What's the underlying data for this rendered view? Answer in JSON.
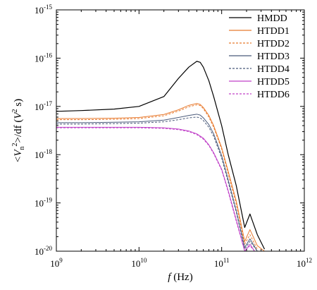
{
  "chart_data": {
    "type": "line",
    "xscale": "log",
    "yscale": "log",
    "xlim": [
      1000000000.0,
      1000000000000.0
    ],
    "ylim": [
      1e-20,
      1e-15
    ],
    "xlabel": "f (Hz)",
    "ylabel": "<V_n^2>/df (V^2 s)",
    "x_tick_labels": [
      {
        "base": "10",
        "exp": "9"
      },
      {
        "base": "10",
        "exp": "10"
      },
      {
        "base": "10",
        "exp": "11"
      },
      {
        "base": "10",
        "exp": "12"
      }
    ],
    "y_tick_labels": [
      {
        "base": "10",
        "exp": "-20"
      },
      {
        "base": "10",
        "exp": "-19"
      },
      {
        "base": "10",
        "exp": "-18"
      },
      {
        "base": "10",
        "exp": "-17"
      },
      {
        "base": "10",
        "exp": "-16"
      },
      {
        "base": "10",
        "exp": "-15"
      }
    ],
    "legend_position": "top-right",
    "series": [
      {
        "name": "HMDD",
        "color": "#000000",
        "dash": "solid",
        "x": [
          1000000000.0,
          2000000000.0,
          5000000000.0,
          10000000000.0,
          20000000000.0,
          30000000000.0,
          40000000000.0,
          50000000000.0,
          55000000000.0,
          60000000000.0,
          70000000000.0,
          80000000000.0,
          100000000000.0,
          120000000000.0,
          150000000000.0,
          190000000000.0,
          220000000000.0,
          270000000000.0,
          330000000000.0
        ],
        "y": [
          7.9e-18,
          8.2e-18,
          8.8e-18,
          1e-17,
          1.6e-17,
          3.8e-17,
          6.5e-17,
          8.6e-17,
          8.2e-17,
          6.5e-17,
          3.4e-17,
          1.6e-17,
          4e-18,
          1e-18,
          2.3e-19,
          3.1e-20,
          5.9e-20,
          2.2e-20,
          1.1e-20
        ]
      },
      {
        "name": "HTDD1",
        "color": "#e87a2e",
        "dash": "solid",
        "x": [
          1000000000.0,
          2000000000.0,
          5000000000.0,
          10000000000.0,
          20000000000.0,
          30000000000.0,
          40000000000.0,
          50000000000.0,
          55000000000.0,
          60000000000.0,
          70000000000.0,
          80000000000.0,
          100000000000.0,
          120000000000.0,
          150000000000.0,
          190000000000.0,
          220000000000.0,
          270000000000.0,
          330000000000.0
        ],
        "y": [
          5.6e-18,
          5.6e-18,
          5.7e-18,
          5.9e-18,
          6.8e-18,
          8.5e-18,
          1.05e-17,
          1.15e-17,
          1.1e-17,
          9.5e-18,
          6.5e-18,
          4e-18,
          1.4e-18,
          4.5e-19,
          1.1e-19,
          1.6e-20,
          2.8e-20,
          1.3e-20,
          1e-20
        ]
      },
      {
        "name": "HTDD2",
        "color": "#e87a2e",
        "dash": "dashed",
        "x": [
          1000000000.0,
          2000000000.0,
          5000000000.0,
          10000000000.0,
          20000000000.0,
          30000000000.0,
          40000000000.0,
          50000000000.0,
          55000000000.0,
          60000000000.0,
          70000000000.0,
          80000000000.0,
          100000000000.0,
          120000000000.0,
          150000000000.0,
          190000000000.0,
          220000000000.0,
          270000000000.0
        ],
        "y": [
          5.3e-18,
          5.3e-18,
          5.4e-18,
          5.6e-18,
          6.4e-18,
          8e-18,
          9.8e-18,
          1.08e-17,
          1.04e-17,
          9e-18,
          6e-18,
          3.7e-18,
          1.3e-18,
          4e-19,
          9.5e-20,
          1.4e-20,
          2.2e-20,
          1.1e-20
        ]
      },
      {
        "name": "HTDD3",
        "color": "#4a5a7a",
        "dash": "solid",
        "x": [
          1000000000.0,
          2000000000.0,
          5000000000.0,
          10000000000.0,
          20000000000.0,
          30000000000.0,
          40000000000.0,
          50000000000.0,
          55000000000.0,
          60000000000.0,
          70000000000.0,
          80000000000.0,
          100000000000.0,
          120000000000.0,
          150000000000.0,
          190000000000.0,
          220000000000.0,
          270000000000.0
        ],
        "y": [
          4.6e-18,
          4.6e-18,
          4.7e-18,
          4.8e-18,
          5.2e-18,
          5.9e-18,
          6.5e-18,
          6.9e-18,
          6.6e-18,
          5.8e-18,
          4.2e-18,
          2.7e-18,
          9.5e-19,
          3e-19,
          7e-20,
          1.2e-20,
          1.8e-20,
          1e-20
        ]
      },
      {
        "name": "HTDD4",
        "color": "#4a5a7a",
        "dash": "dashed",
        "x": [
          1000000000.0,
          2000000000.0,
          5000000000.0,
          10000000000.0,
          20000000000.0,
          30000000000.0,
          40000000000.0,
          50000000000.0,
          55000000000.0,
          60000000000.0,
          70000000000.0,
          80000000000.0,
          100000000000.0,
          120000000000.0,
          150000000000.0,
          190000000000.0,
          220000000000.0,
          270000000000.0
        ],
        "y": [
          4.3e-18,
          4.3e-18,
          4.4e-18,
          4.5e-18,
          4.8e-18,
          5.3e-18,
          5.8e-18,
          6e-18,
          5.8e-18,
          5.1e-18,
          3.7e-18,
          2.4e-18,
          8.5e-19,
          2.7e-19,
          6.5e-20,
          1.1e-20,
          1.6e-20,
          1e-20
        ]
      },
      {
        "name": "HTDD5",
        "color": "#c040c8",
        "dash": "solid",
        "x": [
          1000000000.0,
          2000000000.0,
          5000000000.0,
          10000000000.0,
          20000000000.0,
          30000000000.0,
          40000000000.0,
          50000000000.0,
          60000000000.0,
          70000000000.0,
          80000000000.0,
          100000000000.0,
          120000000000.0,
          150000000000.0,
          190000000000.0,
          220000000000.0,
          250000000000.0
        ],
        "y": [
          3.7e-18,
          3.7e-18,
          3.7e-18,
          3.7e-18,
          3.6e-18,
          3.4e-18,
          3.1e-18,
          2.7e-18,
          2.2e-18,
          1.6e-18,
          1.1e-18,
          5e-19,
          1.8e-19,
          4.5e-20,
          1e-20,
          1.4e-20,
          1e-20
        ]
      },
      {
        "name": "HTDD6",
        "color": "#c040c8",
        "dash": "dashed",
        "x": [
          1000000000.0,
          2000000000.0,
          5000000000.0,
          10000000000.0,
          20000000000.0,
          30000000000.0,
          40000000000.0,
          50000000000.0,
          60000000000.0,
          70000000000.0,
          80000000000.0,
          100000000000.0,
          120000000000.0,
          150000000000.0,
          190000000000.0,
          220000000000.0,
          250000000000.0
        ],
        "y": [
          3.6e-18,
          3.6e-18,
          3.6e-18,
          3.6e-18,
          3.5e-18,
          3.3e-18,
          3e-18,
          2.6e-18,
          2.1e-18,
          1.55e-18,
          1.05e-18,
          4.8e-19,
          1.7e-19,
          4.2e-20,
          1e-20,
          1.3e-20,
          1e-20
        ]
      }
    ]
  }
}
